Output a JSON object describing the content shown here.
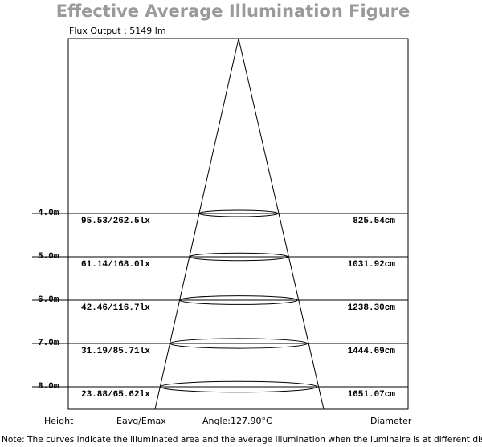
{
  "header": {
    "title": "Effective Average Illumination Figure",
    "flux_output": "Flux Output : 5149 lm"
  },
  "rows": [
    {
      "height": "4.0m",
      "illuminance": "95.53/262.5lx",
      "diameter": "825.54cm"
    },
    {
      "height": "5.0m",
      "illuminance": "61.14/168.0lx",
      "diameter": "1031.92cm"
    },
    {
      "height": "6.0m",
      "illuminance": "42.46/116.7lx",
      "diameter": "1238.30cm"
    },
    {
      "height": "7.0m",
      "illuminance": "31.19/85.71lx",
      "diameter": "1444.69cm"
    },
    {
      "height": "8.0m",
      "illuminance": "23.88/65.62lx",
      "diameter": "1651.07cm"
    }
  ],
  "footer": {
    "height": "Height",
    "illuminance": "Eavg/Emax",
    "angle": "Angle:127.90°C",
    "diameter": "Diameter"
  },
  "note": "Note: The curves indicate the illuminated area and the average illumination when the luminaire is at different distance."
}
